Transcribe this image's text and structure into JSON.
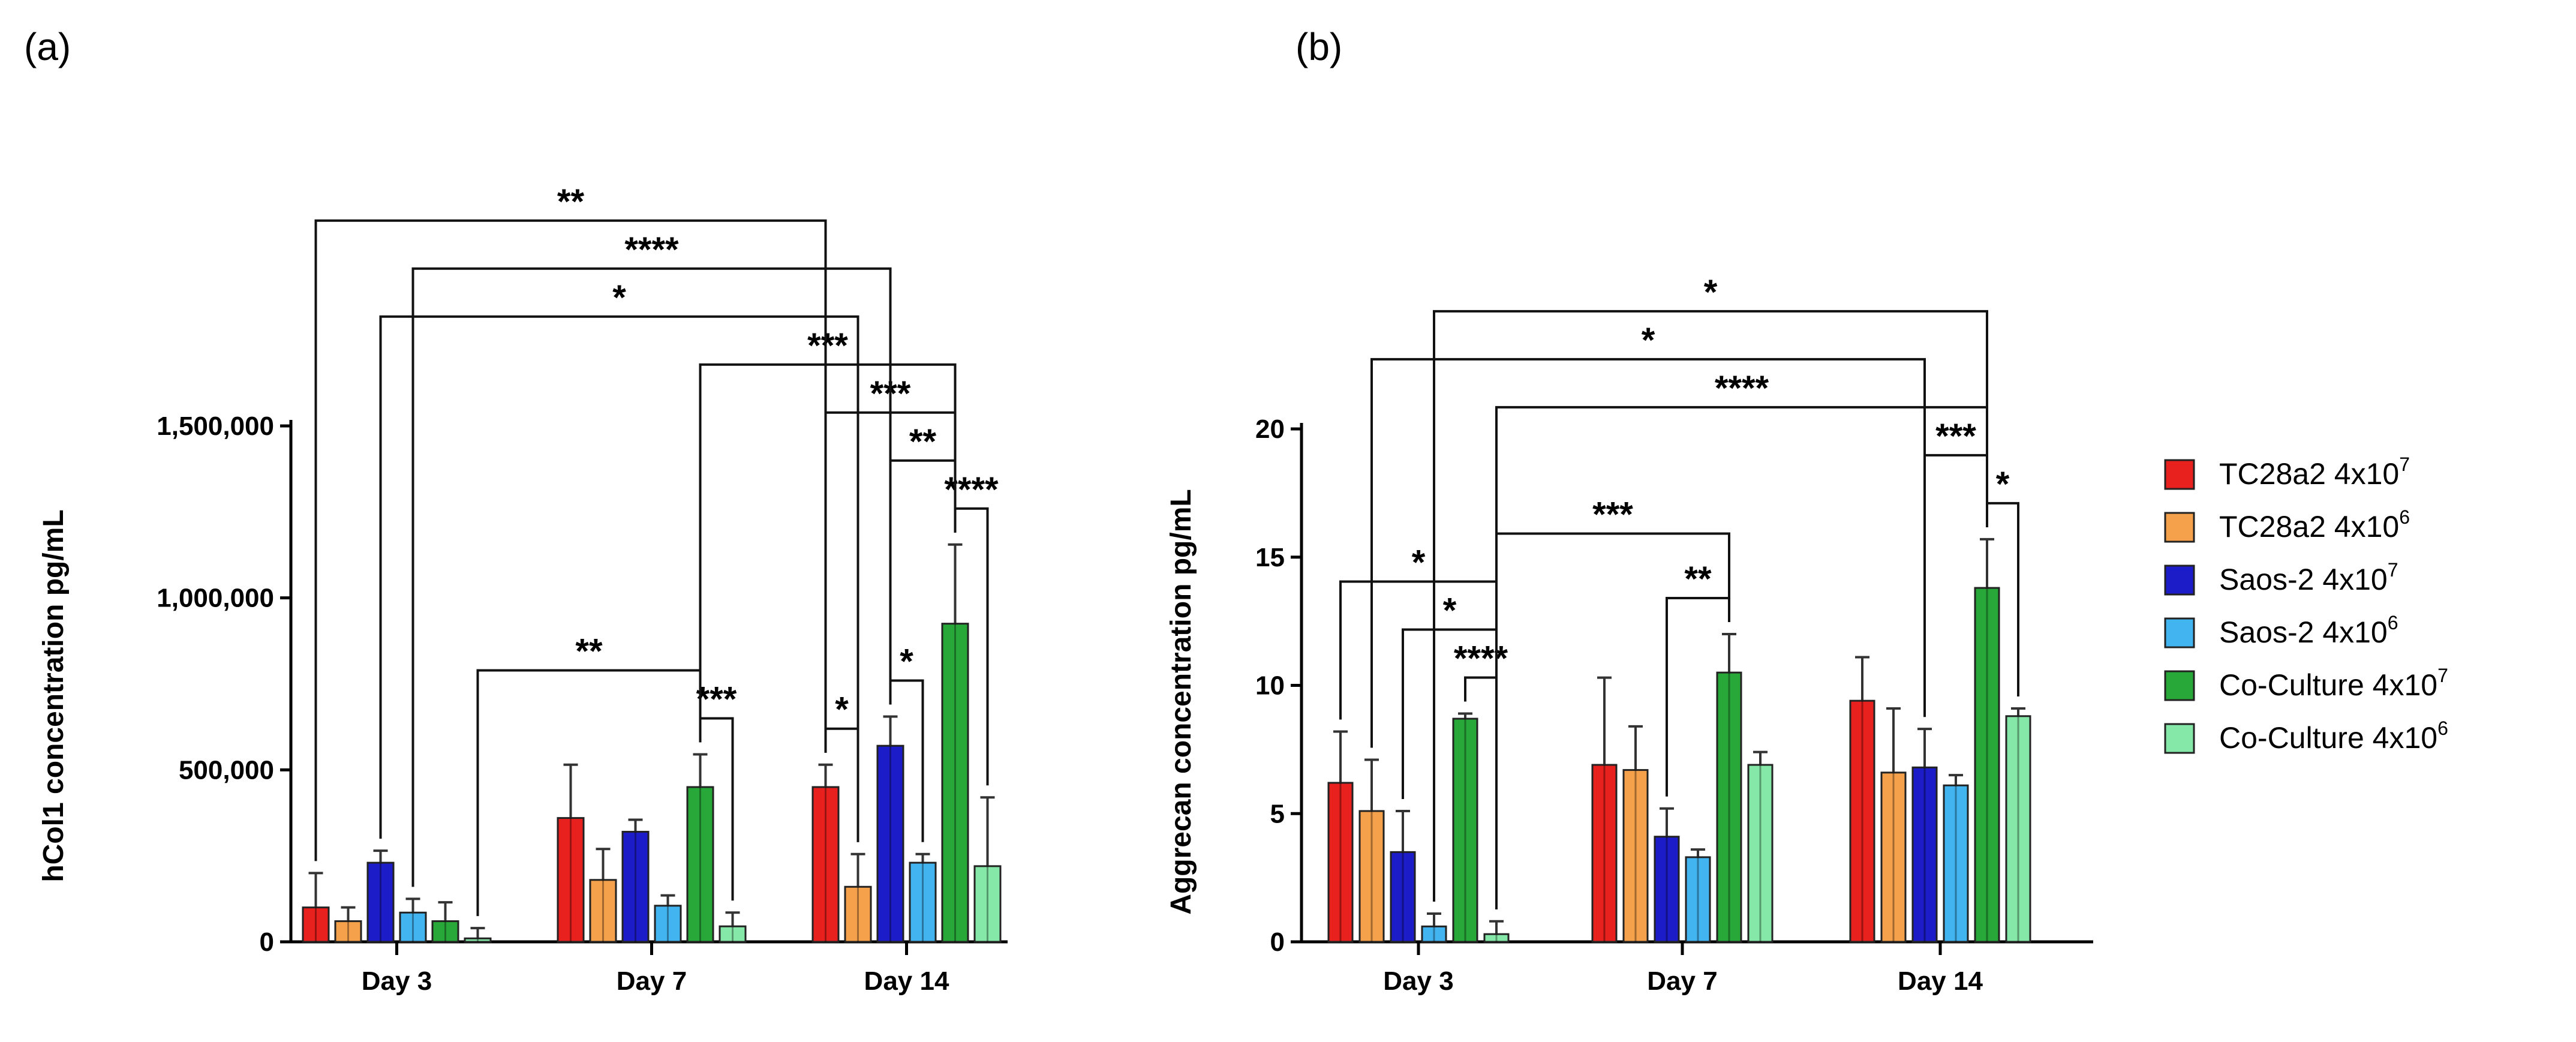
{
  "colors": [
    "#e8201e",
    "#f5a04a",
    "#1c1cc8",
    "#42b4f0",
    "#28a838",
    "#86e8a8"
  ],
  "legend": [
    {
      "label": "TC28a2 4x10",
      "exp": "7"
    },
    {
      "label": "TC28a2 4x10",
      "exp": "6"
    },
    {
      "label": "Saos-2 4x10",
      "exp": "7"
    },
    {
      "label": "Saos-2 4x10",
      "exp": "6"
    },
    {
      "label": "Co-Culture 4x10",
      "exp": "7"
    },
    {
      "label": "Co-Culture 4x10",
      "exp": "6"
    }
  ],
  "chart_data": [
    {
      "panel_label": "(a)",
      "type": "bar",
      "ylabel": "hCol1 concentration pg/mL",
      "ylim": [
        0,
        1500000
      ],
      "yticks": [
        0,
        500000,
        1000000,
        1500000
      ],
      "ytick_labels": [
        "0",
        "500,000",
        "1,000,000",
        "1,500,000"
      ],
      "categories": [
        "Day 3",
        "Day 7",
        "Day 14"
      ],
      "series": [
        {
          "name": "TC28a2 4x10^7",
          "values": [
            100000,
            360000,
            450000
          ],
          "errors": [
            100000,
            155000,
            65000
          ]
        },
        {
          "name": "TC28a2 4x10^6",
          "values": [
            60000,
            180000,
            160000
          ],
          "errors": [
            40000,
            90000,
            95000
          ]
        },
        {
          "name": "Saos-2 4x10^7",
          "values": [
            230000,
            320000,
            570000
          ],
          "errors": [
            35000,
            35000,
            85000
          ]
        },
        {
          "name": "Saos-2 4x10^6",
          "values": [
            85000,
            105000,
            230000
          ],
          "errors": [
            40000,
            30000,
            25000
          ]
        },
        {
          "name": "Co-Culture 4x10^7",
          "values": [
            60000,
            450000,
            925000
          ],
          "errors": [
            55000,
            95000,
            230000
          ]
        },
        {
          "name": "Co-Culture 4x10^6",
          "values": [
            10000,
            45000,
            220000
          ],
          "errors": [
            30000,
            40000,
            200000
          ]
        }
      ],
      "significance": [
        {
          "from": [
            0,
            0
          ],
          "to": [
            2,
            0
          ],
          "label": "**"
        },
        {
          "from": [
            0,
            2
          ],
          "to": [
            2,
            1
          ],
          "label": "*"
        },
        {
          "from": [
            0,
            3
          ],
          "to": [
            2,
            2
          ],
          "label": "****"
        },
        {
          "from": [
            0,
            5
          ],
          "to": [
            1,
            4
          ],
          "label": "**"
        },
        {
          "from": [
            1,
            4
          ],
          "to": [
            1,
            5
          ],
          "label": "***"
        },
        {
          "from": [
            1,
            4
          ],
          "to": [
            2,
            4
          ],
          "label": "***"
        },
        {
          "from": [
            2,
            0
          ],
          "to": [
            2,
            1
          ],
          "label": "*"
        },
        {
          "from": [
            2,
            0
          ],
          "to": [
            2,
            4
          ],
          "label": "***"
        },
        {
          "from": [
            2,
            2
          ],
          "to": [
            2,
            3
          ],
          "label": "*"
        },
        {
          "from": [
            2,
            2
          ],
          "to": [
            2,
            4
          ],
          "label": "**"
        },
        {
          "from": [
            2,
            4
          ],
          "to": [
            2,
            5
          ],
          "label": "****"
        }
      ]
    },
    {
      "panel_label": "(b)",
      "type": "bar",
      "ylabel": "Aggrecan concentration pg/mL",
      "ylim": [
        0,
        20
      ],
      "yticks": [
        0,
        5,
        10,
        15,
        20
      ],
      "ytick_labels": [
        "0",
        "5",
        "10",
        "15",
        "20"
      ],
      "categories": [
        "Day 3",
        "Day 7",
        "Day 14"
      ],
      "series": [
        {
          "name": "TC28a2 4x10^7",
          "values": [
            6.2,
            6.9,
            9.4
          ],
          "errors": [
            2.0,
            3.4,
            1.7
          ]
        },
        {
          "name": "TC28a2 4x10^6",
          "values": [
            5.1,
            6.7,
            6.6
          ],
          "errors": [
            2.0,
            1.7,
            2.5
          ]
        },
        {
          "name": "Saos-2 4x10^7",
          "values": [
            3.5,
            4.1,
            6.8
          ],
          "errors": [
            1.6,
            1.1,
            1.5
          ]
        },
        {
          "name": "Saos-2 4x10^6",
          "values": [
            0.6,
            3.3,
            6.1
          ],
          "errors": [
            0.5,
            0.3,
            0.4
          ]
        },
        {
          "name": "Co-Culture 4x10^7",
          "values": [
            8.7,
            10.5,
            13.8
          ],
          "errors": [
            0.2,
            1.5,
            1.9
          ]
        },
        {
          "name": "Co-Culture 4x10^6",
          "values": [
            0.3,
            6.9,
            8.8
          ],
          "errors": [
            0.5,
            0.5,
            0.3
          ]
        }
      ],
      "significance": [
        {
          "from": [
            0,
            0
          ],
          "to": [
            0,
            5
          ],
          "label": "*"
        },
        {
          "from": [
            0,
            2
          ],
          "to": [
            0,
            5
          ],
          "label": "*"
        },
        {
          "from": [
            0,
            4
          ],
          "to": [
            0,
            5
          ],
          "label": "****"
        },
        {
          "from": [
            0,
            5
          ],
          "to": [
            1,
            4
          ],
          "label": "***"
        },
        {
          "from": [
            0,
            5
          ],
          "to": [
            2,
            4
          ],
          "label": "****"
        },
        {
          "from": [
            0,
            1
          ],
          "to": [
            2,
            2
          ],
          "label": "*"
        },
        {
          "from": [
            0,
            3
          ],
          "to": [
            2,
            4
          ],
          "label": "*"
        },
        {
          "from": [
            1,
            2
          ],
          "to": [
            1,
            4
          ],
          "label": "**"
        },
        {
          "from": [
            2,
            2
          ],
          "to": [
            2,
            4
          ],
          "label": "***"
        },
        {
          "from": [
            2,
            4
          ],
          "to": [
            2,
            5
          ],
          "label": "*"
        }
      ]
    }
  ]
}
